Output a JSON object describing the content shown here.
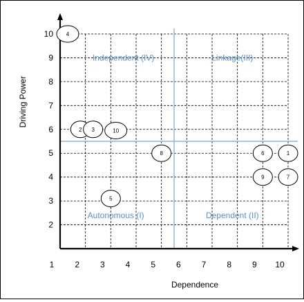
{
  "chart_data": {
    "type": "scatter",
    "title": "",
    "xlabel": "Dependence",
    "ylabel": "Driving Power",
    "xlim": [
      1,
      10
    ],
    "ylim": [
      1,
      10
    ],
    "x_ticks": [
      "1",
      "2",
      "3",
      "4",
      "5",
      "6",
      "7",
      "8",
      "9",
      "10"
    ],
    "y_ticks": [
      "2",
      "3",
      "4",
      "5",
      "6",
      "7",
      "8",
      "9",
      "10"
    ],
    "grid": "dashed",
    "divider_x": 5.5,
    "divider_y": 5.5,
    "quadrants": [
      {
        "label": "Independent (IV)",
        "position": "top-left"
      },
      {
        "label": "Linkage(III)",
        "position": "top-right"
      },
      {
        "label": "Autonomous (I)",
        "position": "bottom-left"
      },
      {
        "label": "Dependent (II)",
        "position": "bottom-right"
      }
    ],
    "points": [
      {
        "label": "1",
        "x": 10,
        "y": 5
      },
      {
        "label": "2",
        "x": 1.8,
        "y": 6
      },
      {
        "label": "3",
        "x": 2.3,
        "y": 6
      },
      {
        "label": "4",
        "x": 1.3,
        "y": 10
      },
      {
        "label": "5",
        "x": 3,
        "y": 3.1
      },
      {
        "label": "6",
        "x": 9,
        "y": 5
      },
      {
        "label": "7",
        "x": 10,
        "y": 4
      },
      {
        "label": "8",
        "x": 5,
        "y": 5
      },
      {
        "label": "9",
        "x": 9,
        "y": 4
      },
      {
        "label": "10",
        "x": 3.2,
        "y": 5.95
      }
    ],
    "colors": {
      "axis": "#000000",
      "grid": "#000000",
      "divider": "#8fb4d6",
      "quadrant_text": "#5b8fc7",
      "point_fill": "#ffffff",
      "point_stroke": "#000000"
    }
  }
}
